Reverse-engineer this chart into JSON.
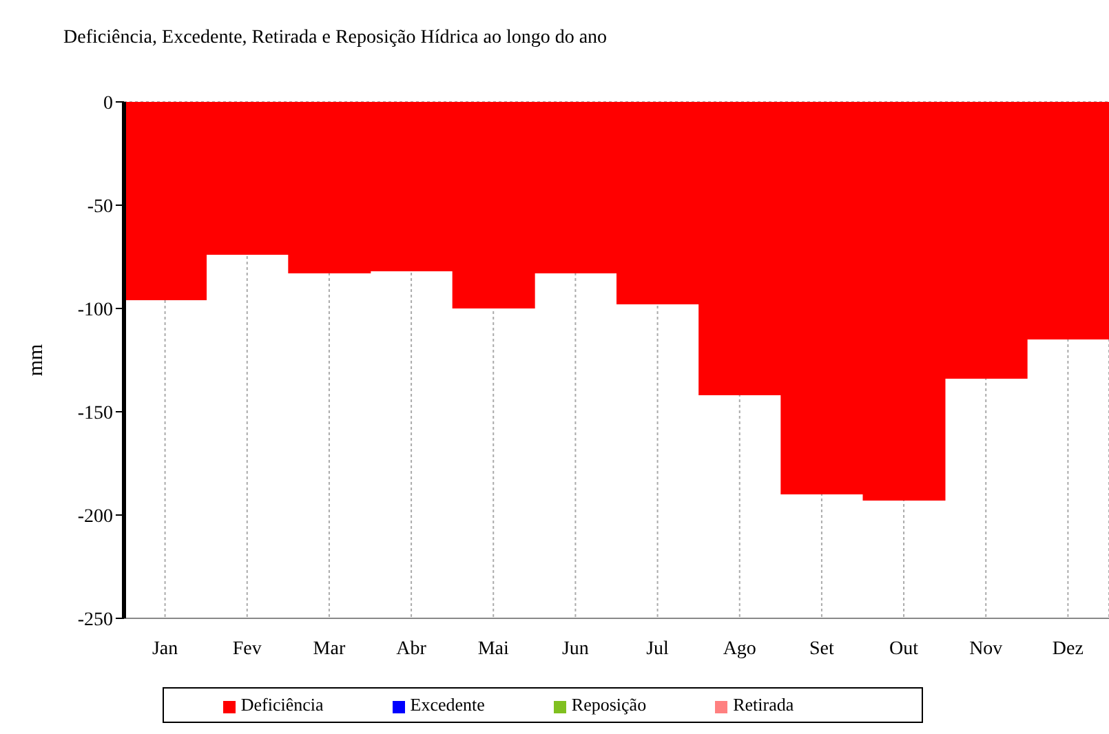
{
  "chart_data": {
    "type": "bar",
    "title": "Deficiência, Excedente, Retirada e Reposição Hídrica ao longo do ano",
    "ylabel": "mm",
    "categories": [
      "Jan",
      "Fev",
      "Mar",
      "Abr",
      "Mai",
      "Jun",
      "Jul",
      "Ago",
      "Set",
      "Out",
      "Nov",
      "Dez"
    ],
    "series": [
      {
        "name": "Deficiência",
        "color": "#ff0000",
        "values": [
          -96,
          -74,
          -83,
          -82,
          -100,
          -83,
          -98,
          -142,
          -190,
          -193,
          -134,
          -115
        ]
      },
      {
        "name": "Excedente",
        "color": "#0000ff",
        "values": [
          0,
          0,
          0,
          0,
          0,
          0,
          0,
          0,
          0,
          0,
          0,
          0
        ]
      },
      {
        "name": "Retirada",
        "color": "#ff8080",
        "values": [
          0,
          0,
          0,
          0,
          0,
          0,
          0,
          0,
          0,
          0,
          0,
          0
        ]
      },
      {
        "name": "Reposição",
        "color": "#80c020",
        "values": [
          0,
          0,
          0,
          0,
          0,
          0,
          0,
          0,
          0,
          0,
          0,
          0
        ]
      }
    ],
    "stacked": true,
    "ylim": [
      -250,
      0
    ],
    "yticks": [
      0,
      -50,
      -100,
      -150,
      -200,
      -250
    ],
    "grid": true,
    "legend": "bottom"
  }
}
